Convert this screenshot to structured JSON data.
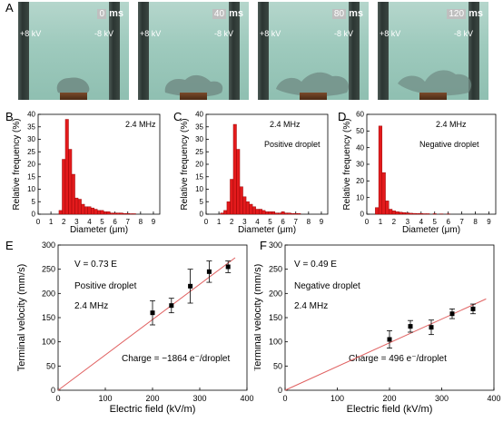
{
  "panel_labels": {
    "A": "A",
    "B": "B",
    "C": "C",
    "D": "D",
    "E": "E",
    "F": "F"
  },
  "frames": [
    {
      "time": "0",
      "unit": "ms",
      "left_voltage": "+8 kV",
      "right_voltage": "-8 kV"
    },
    {
      "time": "40",
      "unit": "ms",
      "left_voltage": "+8 kV",
      "right_voltage": "-8 kV"
    },
    {
      "time": "80",
      "unit": "ms",
      "left_voltage": "+8 kV",
      "right_voltage": "-8 kV"
    },
    {
      "time": "120",
      "unit": "ms",
      "left_voltage": "+8 kV",
      "right_voltage": "-8 kV"
    }
  ],
  "colors": {
    "bar": "#e31a1c",
    "fit_line": "#e06060",
    "axis": "#000000"
  },
  "chart_data": [
    {
      "id": "B",
      "type": "bar",
      "xlabel": "Diameter (μm)",
      "ylabel": "Relative frequency (%)",
      "xlim": [
        0,
        9.5
      ],
      "ylim": [
        0,
        40
      ],
      "xticks": [
        "0",
        "1",
        "2",
        "3",
        "4",
        "5",
        "6",
        "7",
        "8",
        "9"
      ],
      "yticks": [
        "0",
        "5",
        "10",
        "15",
        "20",
        "25",
        "30",
        "35",
        "40"
      ],
      "annotations": [
        "2.4 MHz"
      ],
      "bin_width": 0.25,
      "x": [
        1.75,
        2.0,
        2.25,
        2.5,
        2.75,
        3.0,
        3.25,
        3.5,
        3.75,
        4.0,
        4.25,
        4.5,
        4.75,
        5.0,
        5.25,
        5.5,
        5.75,
        6.0,
        6.25,
        6.5,
        6.75,
        7.0,
        7.25,
        7.5
      ],
      "values": [
        1.5,
        22,
        38,
        26,
        16,
        6.5,
        6,
        4,
        3,
        3,
        2.5,
        2,
        1.5,
        1.5,
        1,
        1,
        0.5,
        0.5,
        0.5,
        0.5,
        0.3,
        0.3,
        0.2,
        0.2
      ]
    },
    {
      "id": "C",
      "type": "bar",
      "xlabel": "Diameter (μm)",
      "ylabel": "Relative frequency (%)",
      "xlim": [
        0,
        9.5
      ],
      "ylim": [
        0,
        40
      ],
      "xticks": [
        "0",
        "1",
        "2",
        "3",
        "4",
        "5",
        "6",
        "7",
        "8",
        "9"
      ],
      "yticks": [
        "0",
        "5",
        "10",
        "15",
        "20",
        "25",
        "30",
        "35",
        "40"
      ],
      "annotations": [
        "2.4 MHz",
        "Positive droplet"
      ],
      "bin_width": 0.25,
      "x": [
        1.25,
        1.5,
        1.75,
        2.0,
        2.25,
        2.5,
        2.75,
        3.0,
        3.25,
        3.5,
        3.75,
        4.0,
        4.25,
        4.5,
        4.75,
        5.0,
        5.25,
        5.5,
        5.75,
        6.0,
        6.25,
        6.5,
        6.75,
        7.0,
        7.25
      ],
      "values": [
        0.5,
        1.5,
        5,
        14,
        36,
        26,
        11,
        7,
        5,
        4,
        3,
        2,
        2,
        1.5,
        1,
        1,
        1,
        0.5,
        0.5,
        1,
        0.5,
        0.5,
        0.3,
        0.3,
        0.3
      ]
    },
    {
      "id": "D",
      "type": "bar",
      "xlabel": "Diameter (μm)",
      "ylabel": "Relative frequency (%)",
      "xlim": [
        0,
        9.5
      ],
      "ylim": [
        0,
        60
      ],
      "xticks": [
        "0",
        "1",
        "2",
        "3",
        "4",
        "5",
        "6",
        "7",
        "8",
        "9"
      ],
      "yticks": [
        "0",
        "10",
        "20",
        "30",
        "40",
        "50",
        "60"
      ],
      "annotations": [
        "2.4 MHz",
        "Negative droplet"
      ],
      "bin_width": 0.25,
      "x": [
        0.75,
        1.0,
        1.25,
        1.5,
        1.75,
        2.0,
        2.25,
        2.5,
        2.75,
        3.0,
        3.25,
        3.5,
        3.75,
        4.0,
        4.25,
        4.5,
        5.0,
        5.5,
        6.0
      ],
      "values": [
        4,
        53,
        25,
        8,
        3,
        2,
        1.5,
        1.2,
        1,
        0.8,
        0.6,
        0.5,
        0.4,
        0.4,
        0.3,
        0.3,
        0.3,
        0.2,
        0.2
      ]
    },
    {
      "id": "E",
      "type": "scatter",
      "xlabel": "Electric field (kV/m)",
      "ylabel": "Terminal velocity (mm/s)",
      "xlim": [
        0,
        400
      ],
      "ylim": [
        0,
        300
      ],
      "xticks": [
        "0",
        "100",
        "200",
        "300",
        "400"
      ],
      "yticks": [
        "0",
        "50",
        "100",
        "150",
        "200",
        "250",
        "300"
      ],
      "annotations": [
        "V = 0.73 E",
        "Positive droplet",
        "2.4 MHz",
        "Charge = −1864 e⁻/droplet"
      ],
      "x": [
        200,
        240,
        280,
        320,
        360
      ],
      "y": [
        160,
        175,
        215,
        245,
        255
      ],
      "err": [
        25,
        15,
        35,
        22,
        12
      ],
      "fit": {
        "slope": 0.73,
        "x_range": [
          0,
          375
        ]
      }
    },
    {
      "id": "F",
      "type": "scatter",
      "xlabel": "Electric field (kV/m)",
      "ylabel": "Terminal velocity (mm/s)",
      "xlim": [
        0,
        400
      ],
      "ylim": [
        0,
        300
      ],
      "xticks": [
        "0",
        "100",
        "200",
        "300",
        "400"
      ],
      "yticks": [
        "0",
        "50",
        "100",
        "150",
        "200",
        "250",
        "300"
      ],
      "annotations": [
        "V = 0.49 E",
        "Negative droplet",
        "2.4 MHz",
        "Charge = 496 e⁻/droplet"
      ],
      "x": [
        200,
        240,
        280,
        320,
        360
      ],
      "y": [
        105,
        132,
        130,
        158,
        168
      ],
      "err": [
        18,
        12,
        15,
        10,
        10
      ],
      "fit": {
        "slope": 0.49,
        "x_range": [
          0,
          385
        ]
      }
    }
  ]
}
